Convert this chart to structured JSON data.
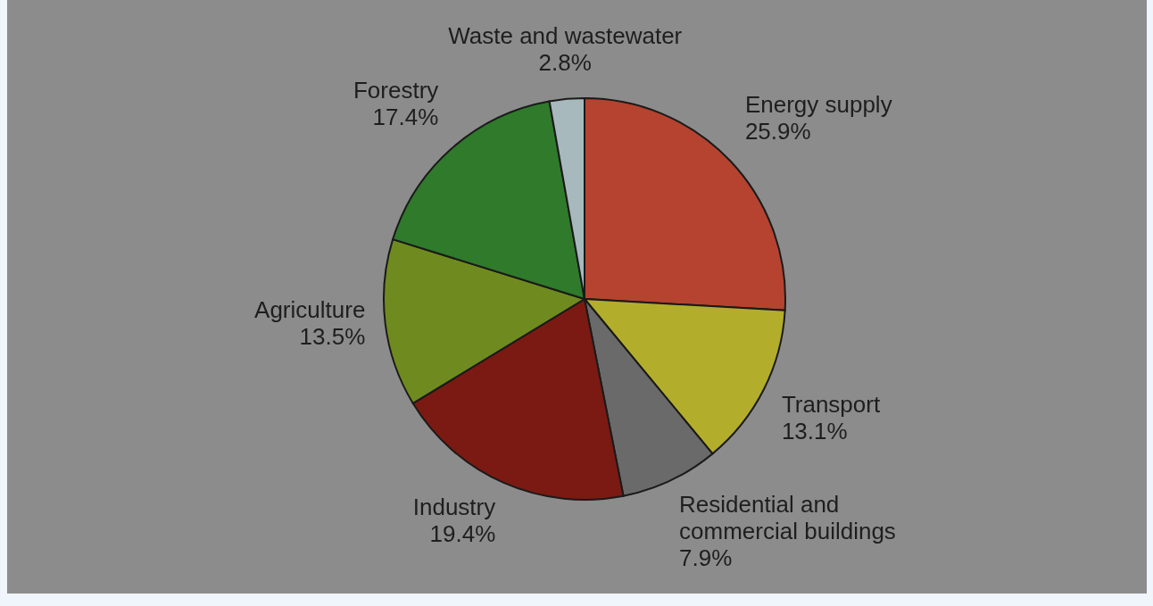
{
  "chart_data": {
    "type": "pie",
    "categories": [
      "Energy supply",
      "Transport",
      "Residential and commercial buildings",
      "Industry",
      "Agriculture",
      "Forestry",
      "Waste and wastewater"
    ],
    "values": [
      25.9,
      13.1,
      7.9,
      19.4,
      13.5,
      17.4,
      2.8
    ],
    "value_labels": [
      "25.9%",
      "13.1%",
      "7.9%",
      "19.4%",
      "13.5%",
      "17.4%",
      "2.8%"
    ],
    "colors": [
      "#b5432f",
      "#b3ad2c",
      "#6a6a6a",
      "#7b1a12",
      "#6f8b1f",
      "#2f7a2b",
      "#a7b9bd"
    ]
  }
}
